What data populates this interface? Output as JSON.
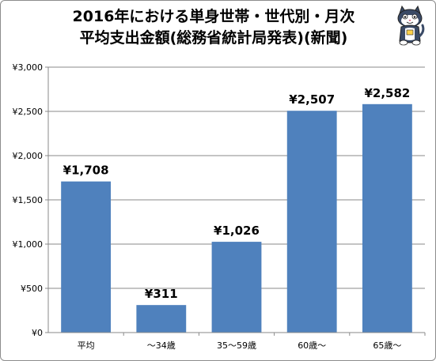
{
  "chart_data": {
    "type": "bar",
    "title": [
      "2016年における単身世帯・世代別・月次",
      "平均支出金額(総務省統計局発表)(新聞)"
    ],
    "categories": [
      "平均",
      "〜34歳",
      "35〜59歳",
      "60歳〜",
      "65歳〜"
    ],
    "values": [
      1708,
      311,
      1026,
      2507,
      2582
    ],
    "data_labels": [
      "¥1,708",
      "¥311",
      "¥1,026",
      "¥2,507",
      "¥2,582"
    ],
    "ylim": [
      0,
      3000
    ],
    "yticks": [
      0,
      500,
      1000,
      1500,
      2000,
      2500,
      3000
    ],
    "ytick_labels": [
      "¥0",
      "¥500",
      "¥1,000",
      "¥1,500",
      "¥2,000",
      "¥2,500",
      "¥3,000"
    ],
    "xlabel": "",
    "ylabel": "",
    "grid": true,
    "legend": "none",
    "bar_color": "#4f81bd"
  },
  "mascot_icon": "cat-mascot-icon"
}
